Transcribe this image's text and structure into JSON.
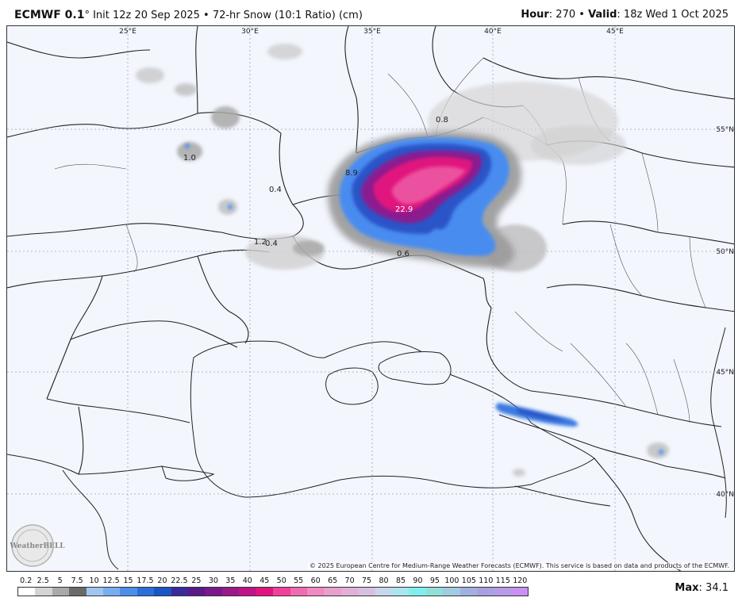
{
  "header": {
    "model": "ECMWF 0.1",
    "model_deg": "°",
    "init": " Init 12z 20 Sep 2025 • 72-hr Snow (10:1 Ratio) (cm)",
    "hour_label": "Hour",
    "hour_value": ": 270 • ",
    "valid_label": "Valid",
    "valid_value": ": 18z Wed 1 Oct 2025"
  },
  "map": {
    "lon_labels": [
      "25°E",
      "30°E",
      "35°E",
      "40°E",
      "45°E"
    ],
    "lat_labels": [
      "55°N",
      "50°N",
      "45°N",
      "40°N"
    ],
    "value_labels": [
      "0.8",
      "8.9",
      "22.9",
      "1.0",
      "0.4",
      "1.2",
      "0.4",
      "0.6"
    ],
    "copyright": "© 2025 European Centre for Medium-Range Weather Forecasts (ECMWF). This service is based on data and products of the ECMWF.",
    "logo_text": "WeatherBELL"
  },
  "legend": {
    "ticks": [
      "0.2",
      "2.5",
      "5",
      "7.5",
      "10",
      "12.5",
      "15",
      "17.5",
      "20",
      "22.5",
      "25",
      "30",
      "35",
      "40",
      "45",
      "50",
      "55",
      "60",
      "65",
      "70",
      "75",
      "80",
      "85",
      "90",
      "95",
      "100",
      "105",
      "110",
      "115",
      "120"
    ],
    "colors": [
      "#ffffff",
      "#d4d4d4",
      "#a9a9a9",
      "#6a6a6a",
      "#9fc6f0",
      "#78aef0",
      "#4d8fe8",
      "#2b6fd8",
      "#1a55c4",
      "#3b2a9a",
      "#5a1a8a",
      "#7a1a8a",
      "#9a1a8a",
      "#c0138a",
      "#e0157e",
      "#f0409a",
      "#f06cb0",
      "#f08ac0",
      "#e8a0cc",
      "#e0b0d6",
      "#d6c0e0",
      "#c8d8ec",
      "#a8e6f0",
      "#80eeee",
      "#90e0d8",
      "#a0cce0",
      "#a0b0e0",
      "#a8a0e0",
      "#b89ae8",
      "#c890f0"
    ],
    "max_label": "Max",
    "max_value": ": 34.1"
  }
}
